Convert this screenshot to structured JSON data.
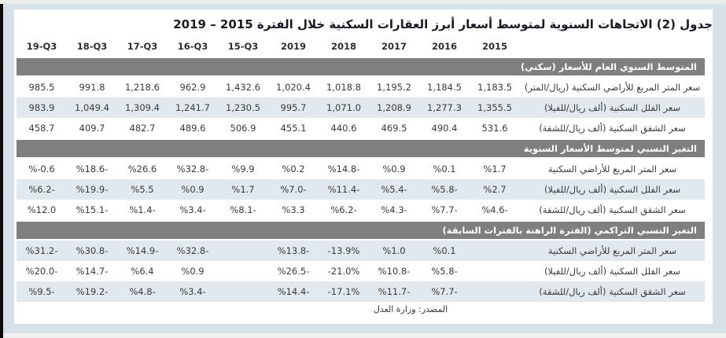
{
  "title": "جدول (2) الاتجاهات السنوية لمتوسط أسعار أبرز العقارات السكنية خلال الفترة 2015 – 2019",
  "source": "المصدر: وزارة العدل",
  "colors": {
    "page_background": "#d8e1e8",
    "section_header_bg": "#7f7f7f",
    "row_stripe": "#e2e9ee",
    "left_edge_bar": "#0c0c0c"
  },
  "table": {
    "columns": [
      "2015",
      "2016",
      "2017",
      "2018",
      "2019",
      "15-Q3",
      "16-Q3",
      "17-Q3",
      "18-Q3",
      "19-Q3"
    ],
    "sections": [
      {
        "title": "المتوسط السنوي العام للأسعار (سكني)",
        "rows": [
          {
            "label": "سعر المتر المربع للأراضي السكنية (ريال/المتر)",
            "values": [
              "1,183.5",
              "1,184.5",
              "1,195.2",
              "1,018.8",
              "1,020.4",
              "1,432.6",
              "962.9",
              "1,218.6",
              "991.8",
              "985.5"
            ]
          },
          {
            "label": "سعر الفلل السكنية (ألف ريال/للفيلا)",
            "values": [
              "1,355.5",
              "1,277.3",
              "1,208.9",
              "1,071.0",
              "995.7",
              "1,230.5",
              "1,241.7",
              "1,309.4",
              "1,049.4",
              "983.9"
            ]
          },
          {
            "label": "سعر الشقق السكنية (ألف ريال/للشقة)",
            "values": [
              "531.6",
              "490.4",
              "469.5",
              "440.6",
              "455.1",
              "506.9",
              "489.6",
              "482.7",
              "409.7",
              "458.7"
            ]
          }
        ]
      },
      {
        "title": "التغير النسبي لمتوسط الأسعار السنوية",
        "rows": [
          {
            "label": "سعر المتر المربع للأراضي السكنية",
            "values": [
              "%1.7",
              "%0.1",
              "%0.9",
              "%14.8-",
              "%0.2",
              "%9.9",
              "%32.8-",
              "%26.6",
              "%18.6-",
              "%-0.6"
            ]
          },
          {
            "label": "سعر الفلل السكنية (ألف ريال/للفيلا)",
            "values": [
              "%2.7",
              "%5.8-",
              "%5.4-",
              "%11.4-",
              "%7.0-",
              "%1.7",
              "%0.9",
              "%5.5",
              "%19.9-",
              "%6.2-"
            ]
          },
          {
            "label": "سعر الشقق السكنية (ألف ريال/للشقة)",
            "values": [
              "%4.6-",
              "%7.7-",
              "%4.3-",
              "%6.2-",
              "%3.3",
              "%8.1-",
              "%3.4-",
              "%1.4-",
              "%15.1-",
              "%12.0"
            ]
          }
        ]
      },
      {
        "title": "التغير النسبي التراكمي (الفترة الراهنة بالفترات السابقة)",
        "rows": [
          {
            "label": "سعر المتر المربع للأراضي السكنية",
            "values": [
              "",
              "%0.1",
              "%1.0",
              "-13.9%",
              "%13.8-",
              "",
              "%32.8-",
              "%14.9-",
              "%30.8-",
              "%31.2-"
            ]
          },
          {
            "label": "سعر الفلل السكنية (ألف ريال/للفيلا)",
            "values": [
              "",
              "%5.8-",
              "%10.8-",
              "-21.0%",
              "%26.5-",
              "",
              "%0.9",
              "%6.4",
              "%14.7-",
              "%20.0-"
            ]
          },
          {
            "label": "سعر الشقق السكنية (ألف ريال/للشقة)",
            "values": [
              "",
              "%7.7-",
              "%11.7-",
              "-17.1%",
              "%14.4-",
              "",
              "%3.4-",
              "%4.8-",
              "%19.2-",
              "%9.5-"
            ]
          }
        ]
      }
    ]
  }
}
